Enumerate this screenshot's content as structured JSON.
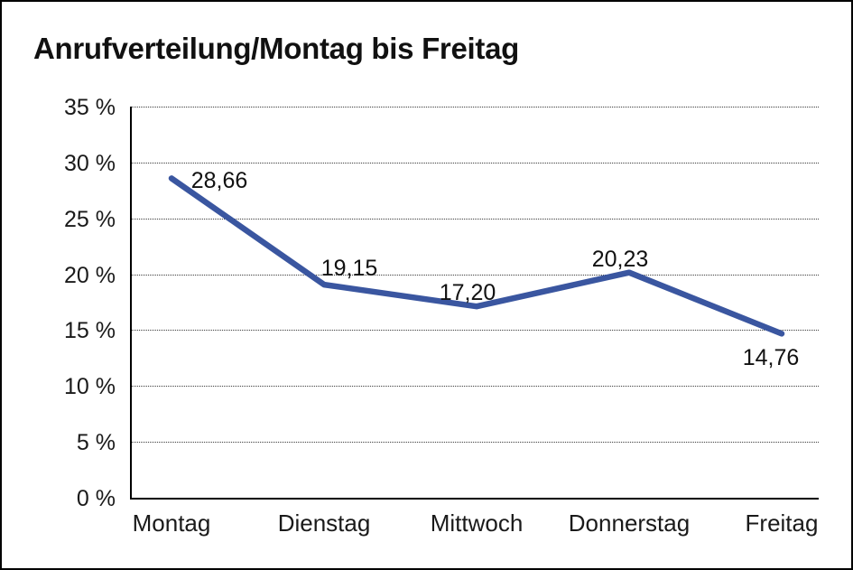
{
  "chart_data": {
    "type": "line",
    "title": "Anrufverteilung/Montag bis Freitag",
    "categories": [
      "Montag",
      "Dienstag",
      "Mittwoch",
      "Donnerstag",
      "Freitag"
    ],
    "values": [
      28.66,
      19.15,
      17.2,
      20.23,
      14.76
    ],
    "point_labels": [
      "28,66",
      "19,15",
      "17,20",
      "20,23",
      "14,76"
    ],
    "series_name": "Anrufverteilung",
    "xlabel": "",
    "ylabel": "",
    "ylim": [
      0,
      35
    ],
    "ytick_step": 5,
    "yticks": [
      "0 %",
      "5 %",
      "10 %",
      "15 %",
      "20 %",
      "25 %",
      "30 %",
      "35 %"
    ],
    "grid": "horizontal-dotted",
    "legend": "none",
    "line_color": "#3A56A0",
    "text_color": "#1a1a1a",
    "background": "#FFFFFF",
    "frame_border_color": "#000000"
  }
}
